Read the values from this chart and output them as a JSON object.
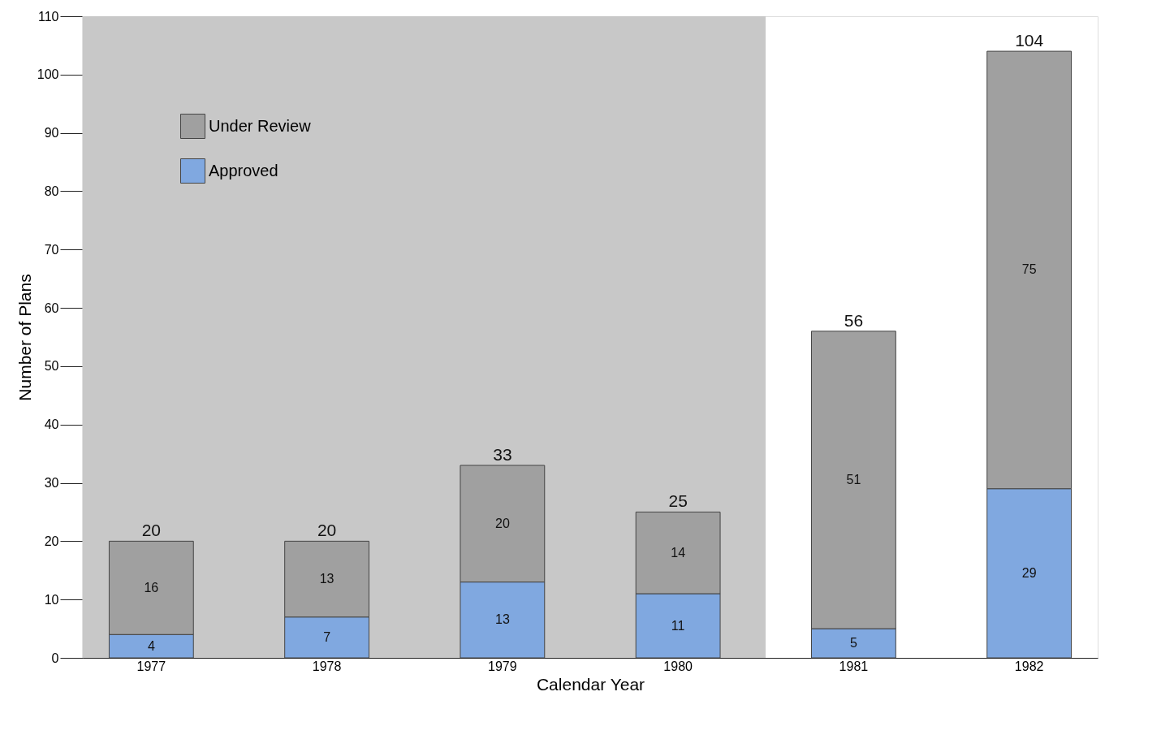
{
  "chart_data": {
    "type": "bar",
    "stacked": true,
    "xlabel": "Calendar Year",
    "ylabel": "Number of Plans",
    "categories": [
      "1977",
      "1978",
      "1979",
      "1980",
      "1981",
      "1982"
    ],
    "series": [
      {
        "name": "Approved",
        "color": "#80a8e0",
        "values": [
          4,
          7,
          13,
          11,
          5,
          29
        ]
      },
      {
        "name": "Under Review",
        "color": "#a0a0a0",
        "values": [
          16,
          13,
          20,
          14,
          51,
          75
        ]
      }
    ],
    "totals": [
      "20",
      "20",
      "33",
      "25",
      "56",
      "104"
    ],
    "data_labels": true,
    "ylim": [
      0,
      110
    ],
    "yticks": [
      0,
      10,
      20,
      30,
      40,
      50,
      60,
      70,
      80,
      90,
      100,
      110
    ],
    "bands": [
      {
        "axis": "x",
        "from": "1977",
        "to": "1980",
        "color": "#c8c8c8"
      }
    ],
    "grid": false,
    "legend": "top left"
  }
}
